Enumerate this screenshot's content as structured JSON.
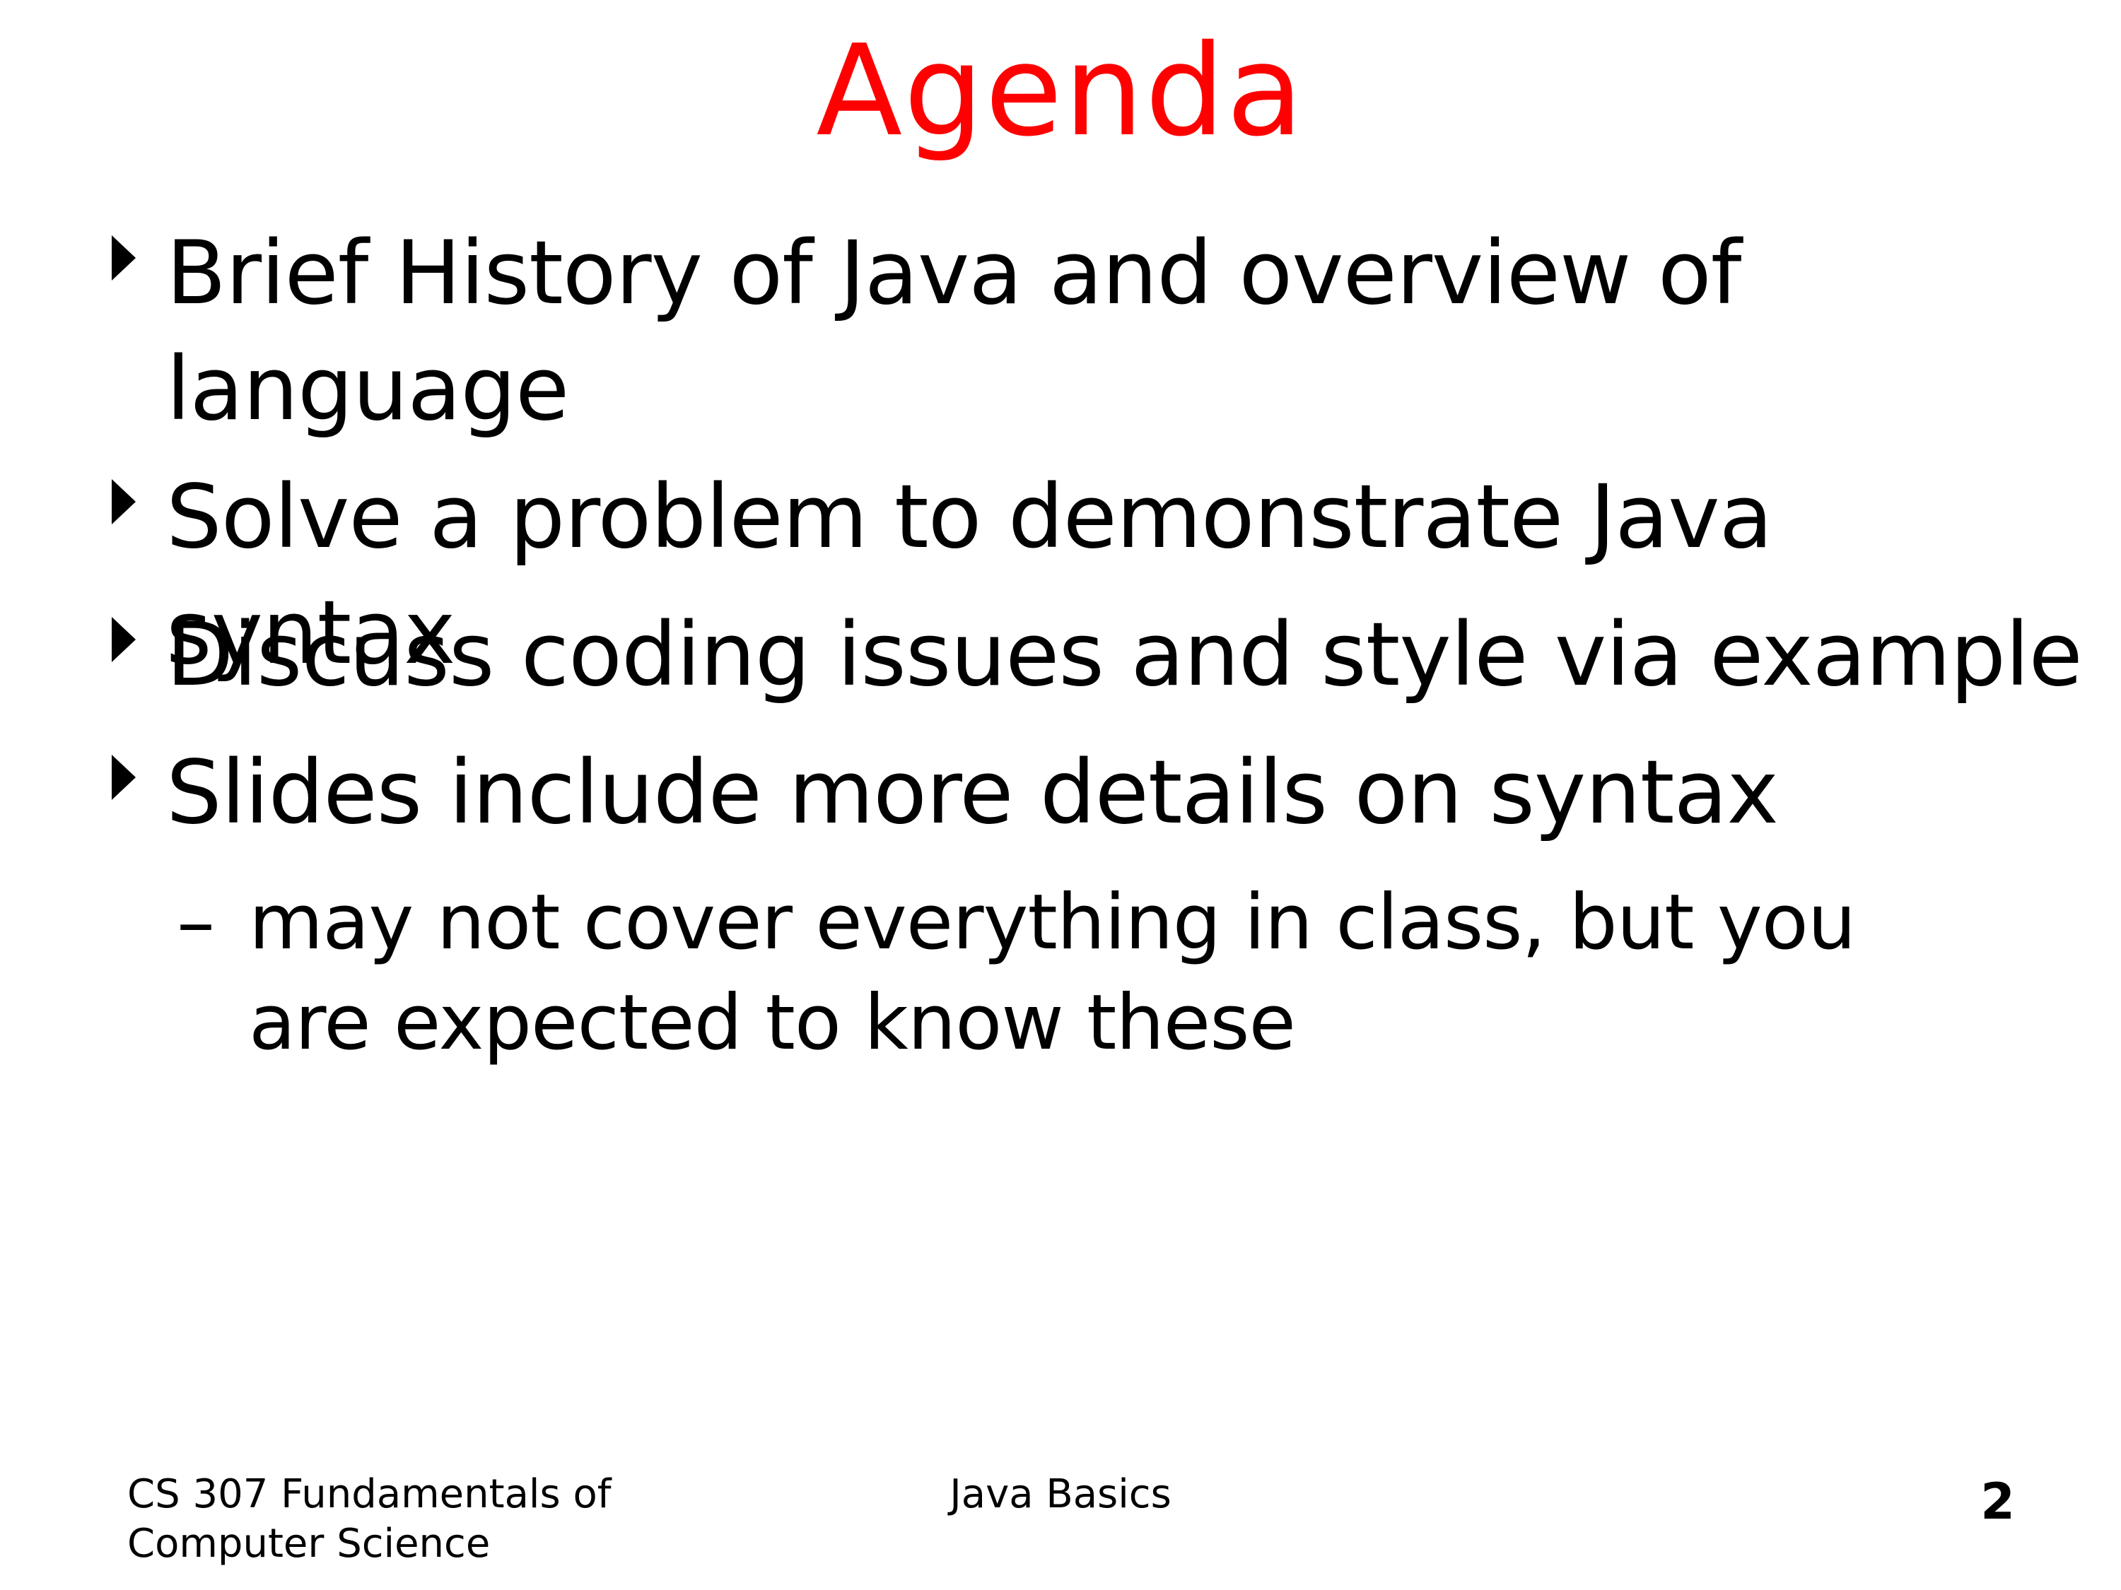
{
  "slide": {
    "title": "Agenda",
    "bullets": [
      {
        "text": "Brief History of Java and overview of language"
      },
      {
        "text": "Solve a problem to demonstrate Java syntax"
      },
      {
        "text": "Discuss coding issues and style via example"
      },
      {
        "text": "Slides include more details on syntax"
      }
    ],
    "sub_bullet": {
      "dash": "–",
      "text": "may not cover everything in class, but you are expected to know these"
    }
  },
  "footer": {
    "course": "CS 307 Fundamentals of Computer Science",
    "topic": "Java Basics",
    "page_number": "2"
  },
  "colors": {
    "title": "#ff0000",
    "text": "#000000",
    "background": "#ffffff"
  }
}
